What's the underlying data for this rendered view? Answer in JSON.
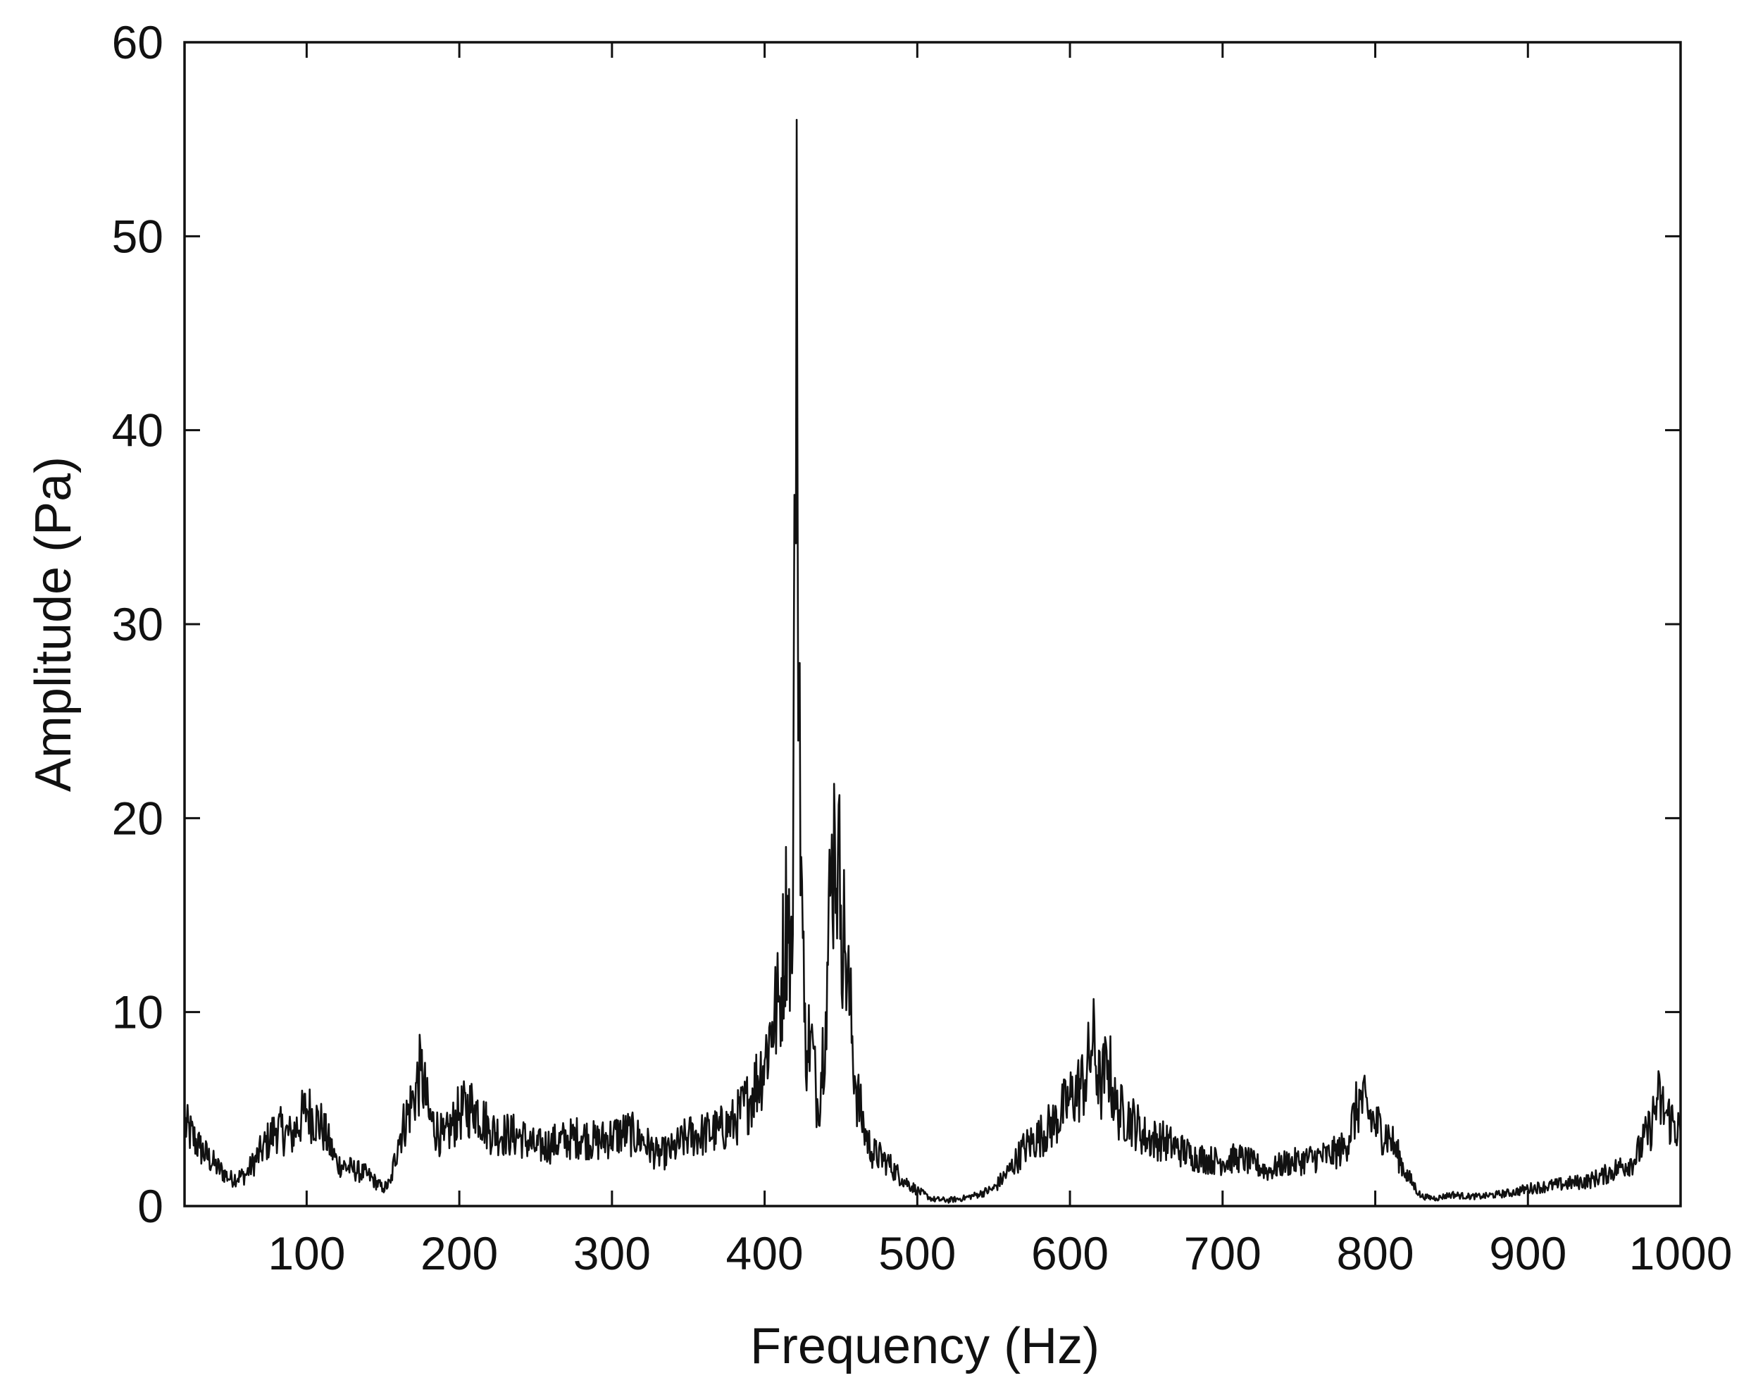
{
  "chart_data": {
    "type": "line",
    "title": "",
    "xlabel": "Frequency (Hz)",
    "ylabel": "Amplitude (Pa)",
    "xlim": [
      20,
      1000
    ],
    "ylim": [
      0,
      60
    ],
    "xticks": [
      100,
      200,
      300,
      400,
      500,
      600,
      700,
      800,
      900,
      1000
    ],
    "yticks": [
      0,
      10,
      20,
      30,
      40,
      50,
      60
    ],
    "grid": false,
    "legend": "none",
    "line_color": "#111111",
    "series": [
      {
        "x": [
          20,
          30,
          40,
          50,
          60,
          70,
          80,
          90,
          100,
          110,
          120,
          130,
          140,
          150,
          155,
          160,
          170,
          175,
          180,
          190,
          200,
          210,
          220,
          230,
          240,
          250,
          260,
          270,
          280,
          290,
          300,
          310,
          320,
          330,
          340,
          350,
          360,
          370,
          380,
          390,
          400,
          405,
          410,
          415,
          418,
          420,
          421,
          422,
          423,
          424,
          426,
          428,
          430,
          435,
          440,
          443,
          446,
          448,
          450,
          453,
          456,
          460,
          465,
          470,
          480,
          490,
          500,
          510,
          520,
          530,
          540,
          550,
          560,
          570,
          580,
          590,
          600,
          610,
          615,
          620,
          625,
          630,
          640,
          650,
          660,
          670,
          680,
          690,
          700,
          710,
          720,
          730,
          740,
          750,
          760,
          770,
          780,
          790,
          800,
          810,
          820,
          830,
          840,
          850,
          860,
          870,
          880,
          890,
          900,
          910,
          920,
          930,
          940,
          950,
          960,
          970,
          980,
          985,
          990,
          1000
        ],
        "values": [
          4.2,
          3.0,
          2.1,
          1.4,
          1.6,
          2.8,
          4.0,
          3.6,
          5.0,
          4.1,
          2.2,
          1.9,
          1.6,
          0.9,
          1.2,
          3.4,
          5.6,
          7.0,
          4.6,
          3.4,
          4.8,
          5.2,
          3.9,
          3.7,
          3.6,
          3.0,
          3.2,
          3.4,
          3.6,
          3.3,
          3.6,
          3.8,
          3.4,
          2.6,
          2.9,
          3.6,
          3.7,
          3.9,
          4.3,
          5.5,
          7.5,
          9.5,
          10.5,
          16.0,
          12.0,
          35.0,
          56.0,
          24.0,
          28.0,
          18.0,
          9.5,
          8.0,
          9.0,
          5.0,
          10.0,
          16.0,
          19.5,
          18.0,
          15.5,
          13.0,
          10.0,
          6.0,
          4.0,
          2.8,
          2.3,
          1.4,
          0.8,
          0.35,
          0.3,
          0.4,
          0.6,
          0.9,
          1.8,
          3.0,
          3.6,
          4.3,
          5.5,
          6.5,
          8.5,
          6.0,
          7.5,
          5.0,
          4.5,
          3.5,
          3.4,
          3.0,
          2.6,
          2.4,
          2.3,
          2.5,
          2.2,
          1.8,
          2.2,
          2.3,
          2.5,
          2.6,
          3.0,
          5.5,
          4.2,
          3.5,
          1.7,
          0.5,
          0.4,
          0.6,
          0.5,
          0.5,
          0.6,
          0.7,
          0.9,
          1.0,
          1.1,
          1.2,
          1.3,
          1.6,
          2.0,
          2.4,
          4.0,
          5.5,
          4.8,
          3.8
        ]
      }
    ]
  }
}
